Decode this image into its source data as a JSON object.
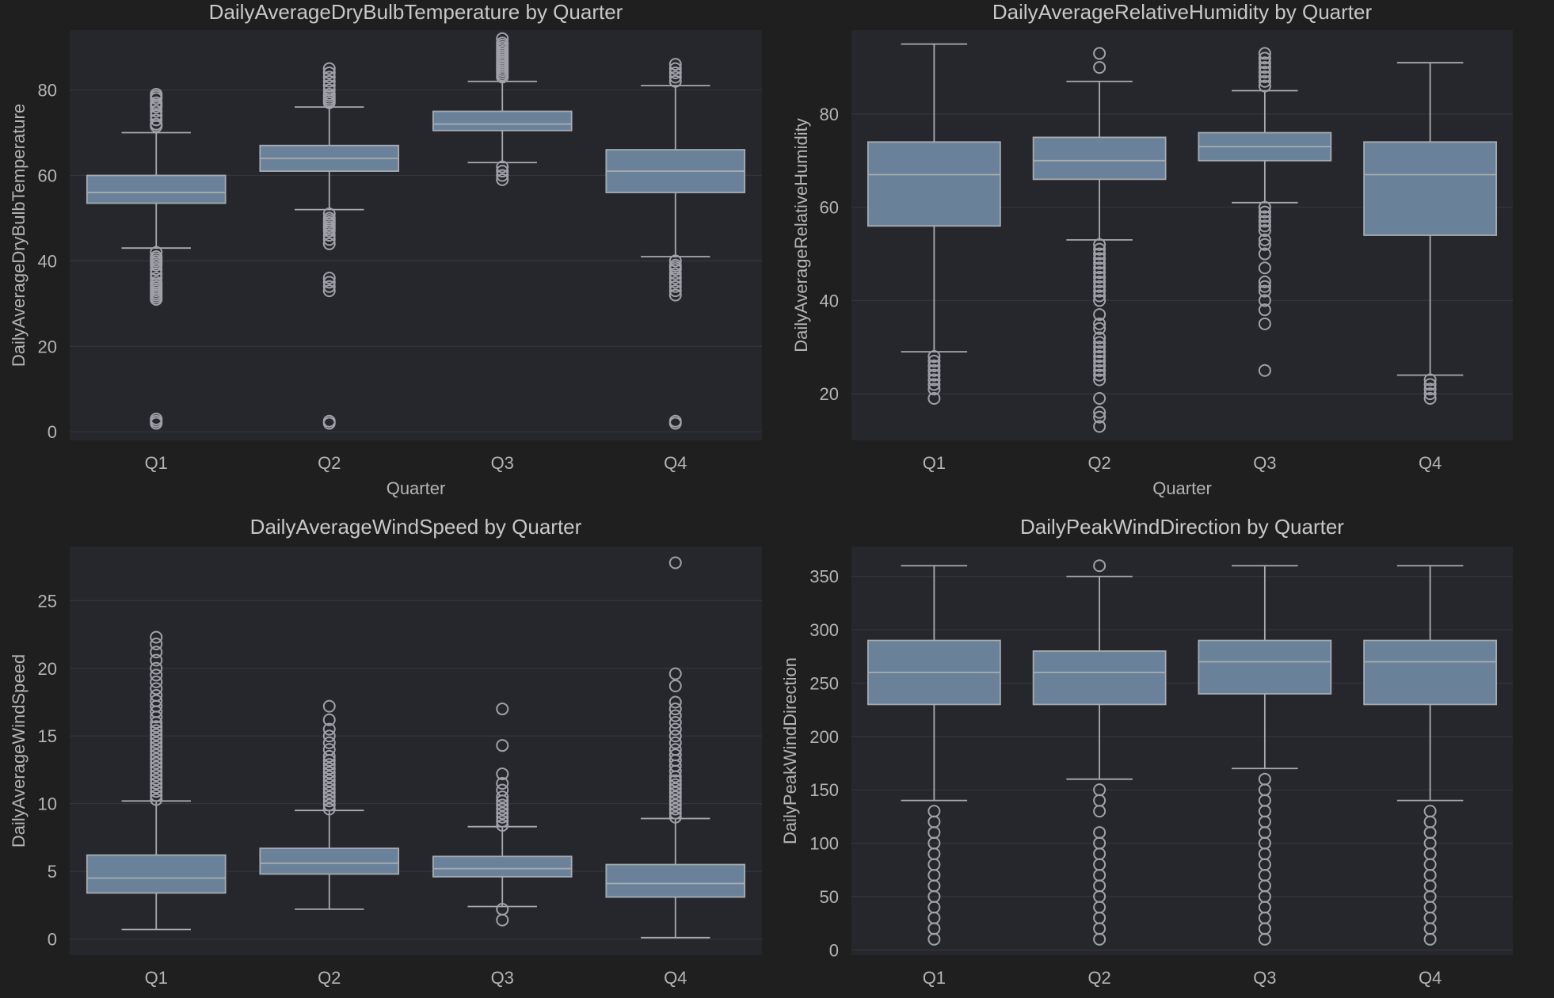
{
  "chart_data": [
    {
      "type": "box",
      "title": "DailyAverageDryBulbTemperature by Quarter",
      "xlabel": "Quarter",
      "ylabel": "DailyAverageDryBulbTemperature",
      "ylim": [
        -2,
        94
      ],
      "yticks": [
        0,
        20,
        40,
        60,
        80
      ],
      "grid": true,
      "categories": [
        "Q1",
        "Q2",
        "Q3",
        "Q4"
      ],
      "boxes": [
        {
          "whislo": 43,
          "q1": 53.5,
          "med": 56,
          "q3": 60,
          "whishi": 70,
          "fliers": [
            31,
            31.5,
            32,
            32.5,
            33,
            33.5,
            34,
            34.5,
            35,
            36,
            37,
            38,
            39,
            39.5,
            40,
            40.5,
            41,
            42,
            2,
            2.5,
            3,
            71.5,
            72,
            73,
            74,
            75,
            76,
            76.5,
            77,
            78,
            78.5,
            79
          ]
        },
        {
          "whislo": 52,
          "q1": 61,
          "med": 64,
          "q3": 67,
          "whishi": 76,
          "fliers": [
            33,
            34,
            35,
            36,
            44,
            45,
            46,
            47,
            47.5,
            48,
            48.5,
            49,
            49.5,
            50,
            51,
            2,
            2.5,
            77,
            77.5,
            78,
            78.5,
            79,
            80,
            81,
            82,
            83,
            84,
            85
          ]
        },
        {
          "whislo": 63,
          "q1": 70.5,
          "med": 72,
          "q3": 75,
          "whishi": 82,
          "fliers": [
            59,
            60,
            61,
            62,
            83,
            83.5,
            84,
            84.5,
            85,
            85.5,
            86,
            86.5,
            87,
            87.5,
            88,
            88.5,
            89,
            89.5,
            90,
            90.5,
            91,
            92
          ]
        },
        {
          "whislo": 41,
          "q1": 56,
          "med": 61,
          "q3": 66,
          "whishi": 81,
          "fliers": [
            32,
            33,
            34,
            35,
            36,
            37,
            38,
            38.5,
            39,
            40,
            2,
            2.5,
            82,
            83,
            84,
            85,
            86
          ]
        }
      ]
    },
    {
      "type": "box",
      "title": "DailyAverageRelativeHumidity by Quarter",
      "xlabel": "Quarter",
      "ylabel": "DailyAverageRelativeHumidity",
      "ylim": [
        10,
        98
      ],
      "yticks": [
        20,
        40,
        60,
        80
      ],
      "grid": true,
      "categories": [
        "Q1",
        "Q2",
        "Q3",
        "Q4"
      ],
      "boxes": [
        {
          "whislo": 29,
          "q1": 56,
          "med": 67,
          "q3": 74,
          "whishi": 95,
          "fliers": [
            19,
            21,
            22,
            23,
            24,
            25,
            26,
            27,
            28
          ]
        },
        {
          "whislo": 53,
          "q1": 66,
          "med": 70,
          "q3": 75,
          "whishi": 87,
          "fliers": [
            13,
            15,
            16,
            19,
            23,
            24,
            25,
            26,
            27,
            28,
            29,
            30,
            31,
            32,
            34,
            35,
            37,
            40,
            41,
            42,
            43,
            44,
            45,
            46,
            47,
            48,
            49,
            50,
            51,
            52,
            90,
            93
          ]
        },
        {
          "whislo": 61,
          "q1": 70,
          "med": 73,
          "q3": 76,
          "whishi": 85,
          "fliers": [
            25,
            35,
            38,
            40,
            42,
            43,
            44,
            47,
            50,
            52,
            53,
            55,
            56,
            57,
            58,
            59,
            60,
            86,
            87,
            88,
            89,
            90,
            91,
            92,
            93
          ]
        },
        {
          "whislo": 24,
          "q1": 54,
          "med": 67,
          "q3": 74,
          "whishi": 91,
          "fliers": [
            19,
            20,
            21,
            22,
            23
          ]
        }
      ]
    },
    {
      "type": "box",
      "title": "DailyAverageWindSpeed by Quarter",
      "xlabel": "",
      "ylabel": "DailyAverageWindSpeed",
      "ylim": [
        -1.2,
        29
      ],
      "yticks": [
        0,
        5,
        10,
        15,
        20,
        25
      ],
      "grid": true,
      "categories": [
        "Q1",
        "Q2",
        "Q3",
        "Q4"
      ],
      "boxes": [
        {
          "whislo": 0.7,
          "q1": 3.4,
          "med": 4.5,
          "q3": 6.2,
          "whishi": 10.2,
          "fliers": [
            10.3,
            10.6,
            10.9,
            11.2,
            11.5,
            11.8,
            12.1,
            12.4,
            12.7,
            13,
            13.3,
            13.6,
            13.9,
            14.2,
            14.5,
            14.8,
            15.1,
            15.4,
            15.7,
            16,
            16.4,
            16.8,
            17.2,
            17.6,
            18,
            18.5,
            19,
            19.5,
            20,
            20.6,
            21.2,
            21.8,
            22.3
          ]
        },
        {
          "whislo": 2.2,
          "q1": 4.8,
          "med": 5.6,
          "q3": 6.7,
          "whishi": 9.5,
          "fliers": [
            9.6,
            9.9,
            10.2,
            10.5,
            10.8,
            11.1,
            11.4,
            11.7,
            12,
            12.3,
            12.6,
            12.9,
            13.2,
            13.5,
            14,
            14.5,
            15,
            15.5,
            16.2,
            17.2
          ]
        },
        {
          "whislo": 2.4,
          "q1": 4.6,
          "med": 5.2,
          "q3": 6.1,
          "whishi": 8.3,
          "fliers": [
            1.4,
            2.2,
            8.4,
            8.7,
            9,
            9.3,
            9.6,
            9.9,
            10.2,
            10.5,
            11,
            11.5,
            12.2,
            14.3,
            17
          ]
        },
        {
          "whislo": 0.1,
          "q1": 3.1,
          "med": 4.1,
          "q3": 5.5,
          "whishi": 8.9,
          "fliers": [
            9,
            9.3,
            9.6,
            9.9,
            10.2,
            10.5,
            10.8,
            11.1,
            11.4,
            11.7,
            12,
            12.4,
            12.8,
            13.2,
            13.6,
            14,
            14.5,
            15,
            15.5,
            16,
            16.5,
            17,
            17.5,
            18.7,
            19.6,
            27.8
          ]
        }
      ]
    },
    {
      "type": "box",
      "title": "DailyPeakWindDirection by Quarter",
      "xlabel": "",
      "ylabel": "DailyPeakWindDirection",
      "ylim": [
        -5,
        378
      ],
      "yticks": [
        0,
        50,
        100,
        150,
        200,
        250,
        300,
        350
      ],
      "grid": true,
      "categories": [
        "Q1",
        "Q2",
        "Q3",
        "Q4"
      ],
      "boxes": [
        {
          "whislo": 140,
          "q1": 230,
          "med": 260,
          "q3": 290,
          "whishi": 360,
          "fliers": [
            10,
            20,
            30,
            40,
            50,
            60,
            70,
            80,
            90,
            100,
            110,
            120,
            130
          ]
        },
        {
          "whislo": 160,
          "q1": 230,
          "med": 260,
          "q3": 280,
          "whishi": 350,
          "fliers": [
            10,
            20,
            30,
            40,
            50,
            60,
            70,
            80,
            90,
            100,
            110,
            130,
            140,
            150,
            360
          ]
        },
        {
          "whislo": 170,
          "q1": 240,
          "med": 270,
          "q3": 290,
          "whishi": 360,
          "fliers": [
            10,
            20,
            30,
            40,
            50,
            60,
            70,
            80,
            90,
            100,
            110,
            120,
            130,
            140,
            150,
            160
          ]
        },
        {
          "whislo": 140,
          "q1": 230,
          "med": 270,
          "q3": 290,
          "whishi": 360,
          "fliers": [
            10,
            20,
            30,
            40,
            50,
            60,
            70,
            80,
            90,
            100,
            110,
            120,
            130
          ]
        }
      ]
    }
  ]
}
